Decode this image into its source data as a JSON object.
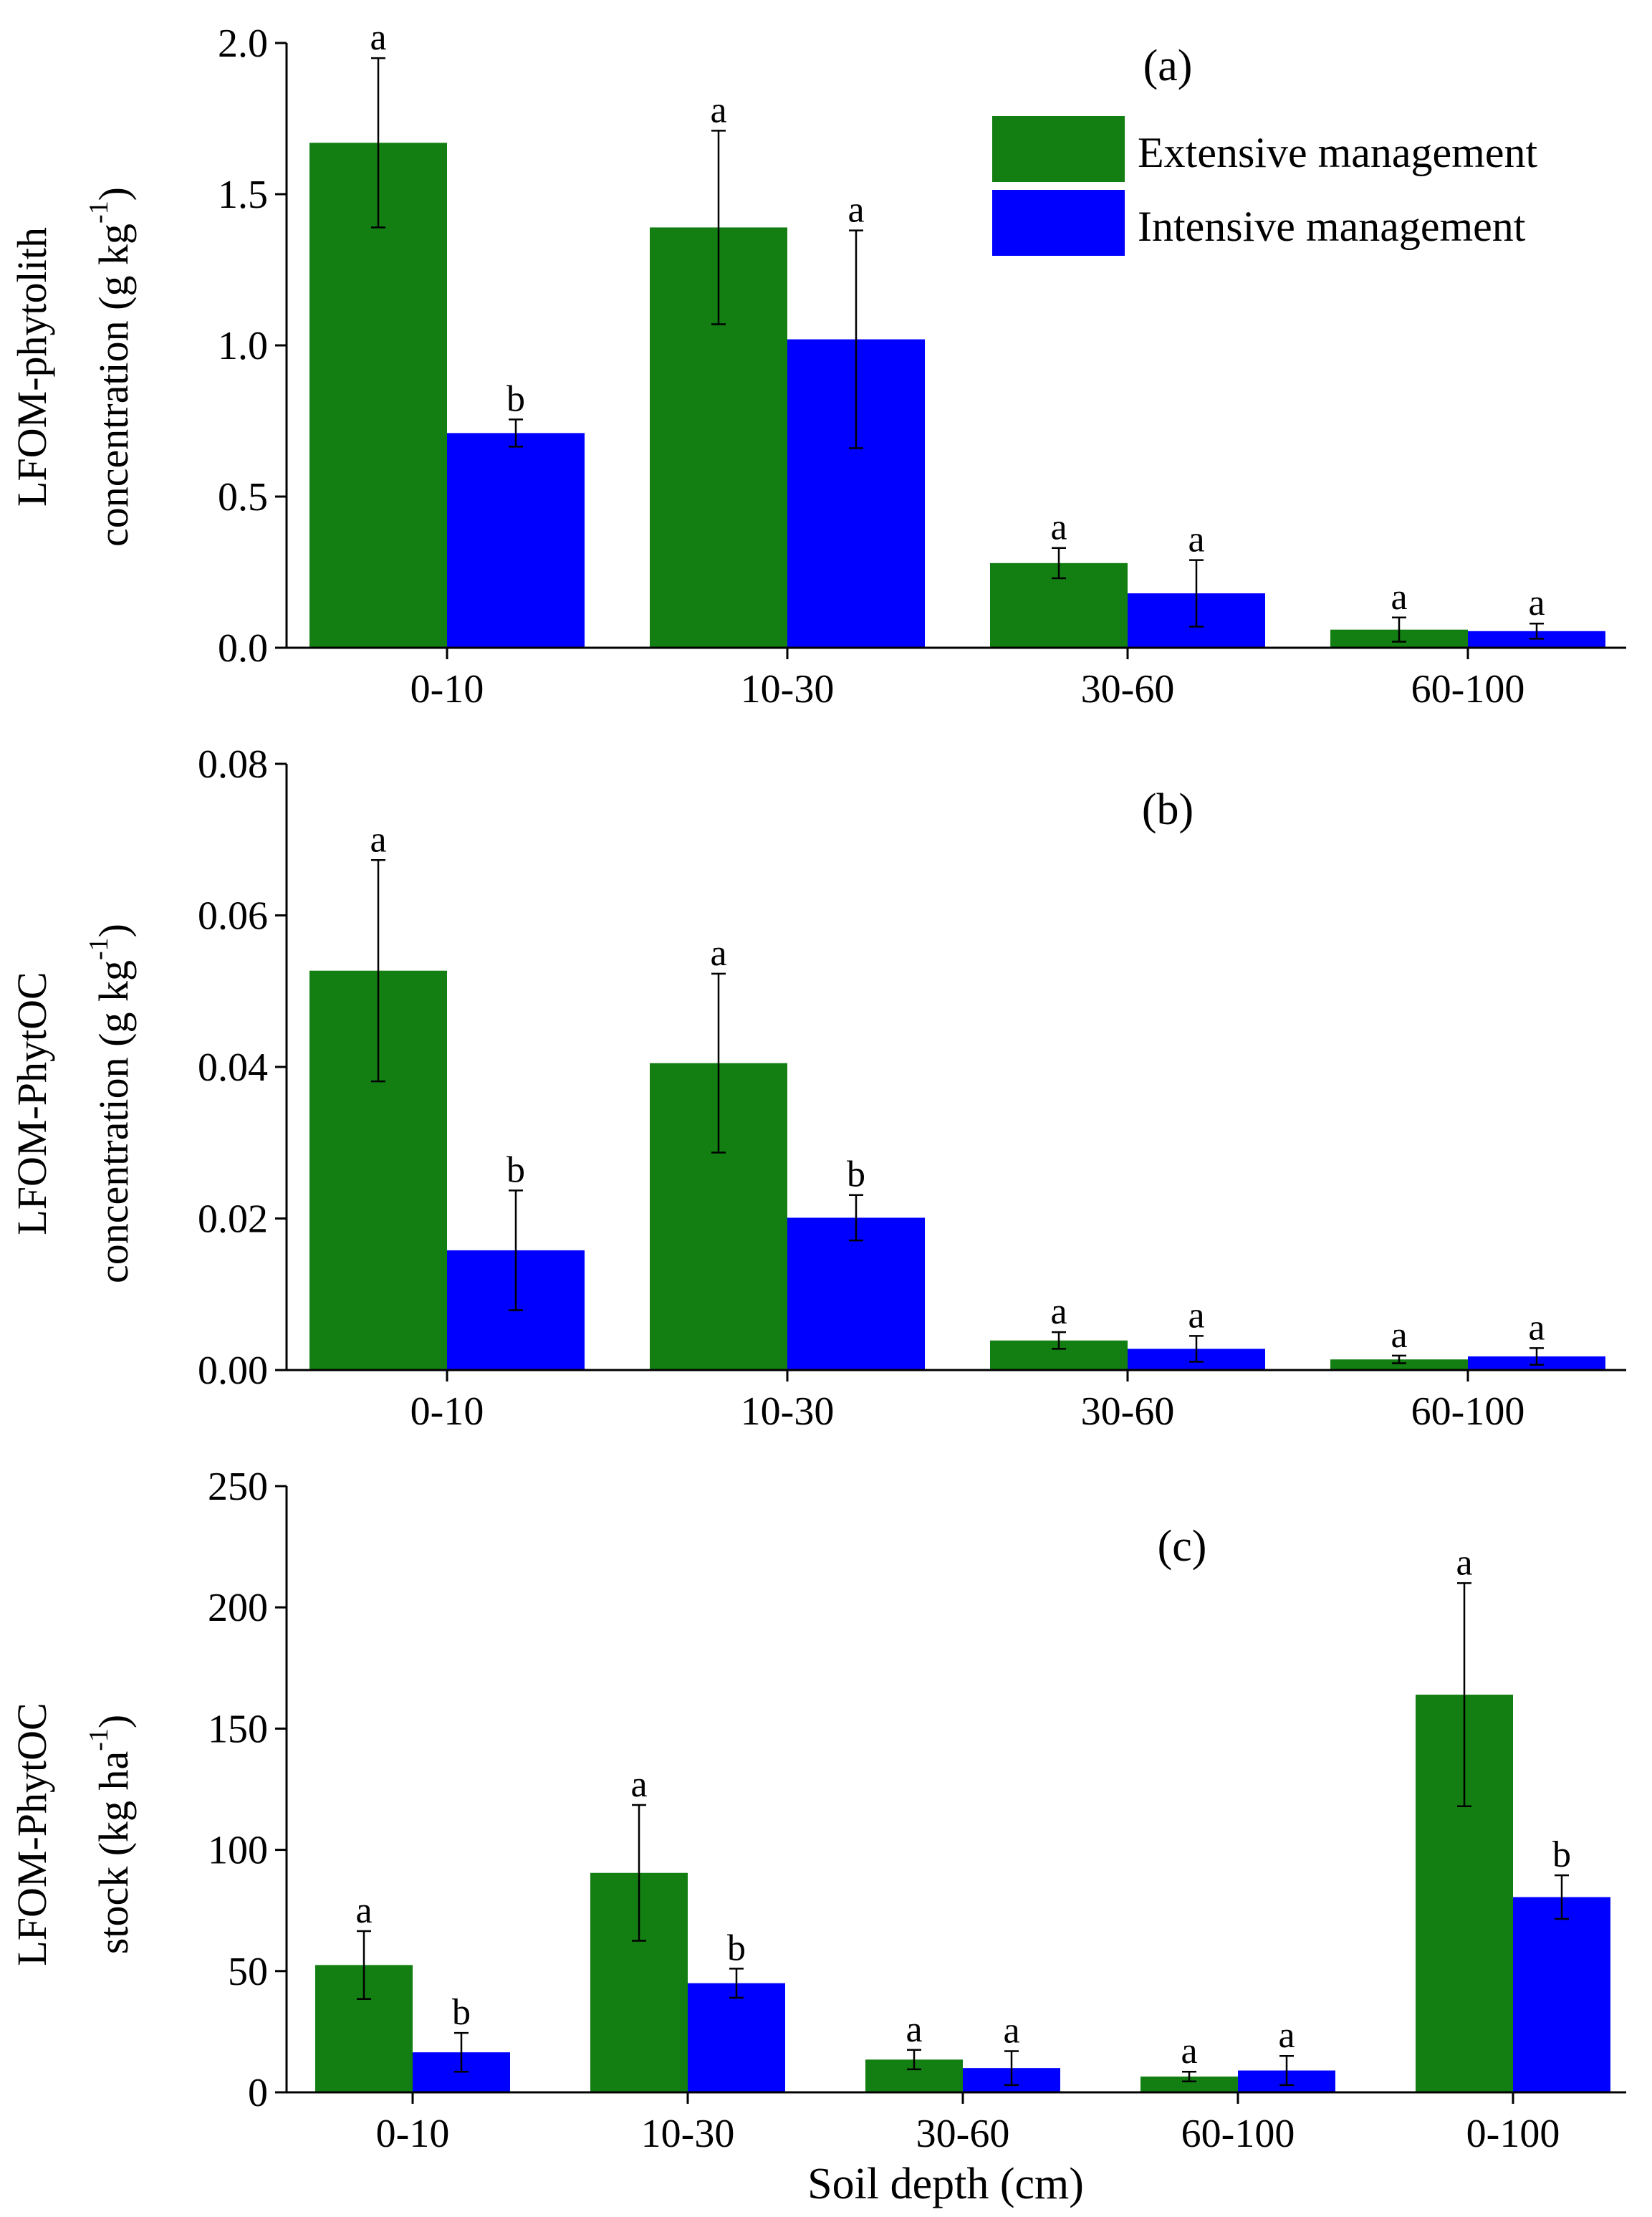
{
  "colors": {
    "extensive": "#137f13",
    "intensive": "#0000ff",
    "axis": "#000000"
  },
  "legend": {
    "extensive_label": "Extensive management",
    "intensive_label": "Intensive management"
  },
  "xlabel": "Soil depth (cm)",
  "chart_data": [
    {
      "type": "bar",
      "panel_label": "(a)",
      "ylabel_line1": "LFOM-phytolith",
      "ylabel_line2": "concentration (g kg",
      "ylabel_sup": "-1",
      "ylabel_close": ")",
      "ylim": [
        0,
        2.0
      ],
      "yticks": [
        "0.0",
        "0.5",
        "1.0",
        "1.5",
        "2.0"
      ],
      "categories": [
        "0-10",
        "10-30",
        "30-60",
        "60-100"
      ],
      "legend_position": "top-right",
      "series": [
        {
          "name": "Extensive management",
          "values": [
            1.67,
            1.39,
            0.28,
            0.06
          ],
          "errors": [
            0.28,
            0.32,
            0.05,
            0.04
          ],
          "letters": [
            "a",
            "a",
            "a",
            "a"
          ]
        },
        {
          "name": "Intensive management",
          "values": [
            0.71,
            1.02,
            0.18,
            0.055
          ],
          "errors": [
            0.045,
            0.36,
            0.11,
            0.025
          ],
          "letters": [
            "b",
            "a",
            "a",
            "a"
          ]
        }
      ]
    },
    {
      "type": "bar",
      "panel_label": "(b)",
      "ylabel_line1": "LFOM-PhytOC",
      "ylabel_line2": "concentration (g kg",
      "ylabel_sup": "-1",
      "ylabel_close": ")",
      "ylim": [
        0,
        0.08
      ],
      "yticks": [
        "0.00",
        "0.02",
        "0.04",
        "0.06",
        "0.08"
      ],
      "categories": [
        "0-10",
        "10-30",
        "30-60",
        "60-100"
      ],
      "series": [
        {
          "name": "Extensive management",
          "values": [
            0.0527,
            0.0405,
            0.0039,
            0.0014
          ],
          "errors": [
            0.0146,
            0.0118,
            0.0011,
            0.0005
          ],
          "letters": [
            "a",
            "a",
            "a",
            "a"
          ]
        },
        {
          "name": "Intensive management",
          "values": [
            0.0158,
            0.0201,
            0.0028,
            0.0018
          ],
          "errors": [
            0.0079,
            0.003,
            0.0017,
            0.0011
          ],
          "letters": [
            "b",
            "b",
            "a",
            "a"
          ]
        }
      ]
    },
    {
      "type": "bar",
      "panel_label": "(c)",
      "ylabel_line1": "LFOM-PhytOC",
      "ylabel_line2": "stock (kg ha",
      "ylabel_sup": "-1",
      "ylabel_close": ")",
      "ylim": [
        0,
        250
      ],
      "yticks": [
        "0",
        "50",
        "100",
        "150",
        "200",
        "250"
      ],
      "categories": [
        "0-10",
        "10-30",
        "30-60",
        "60-100",
        "0-100"
      ],
      "series": [
        {
          "name": "Extensive management",
          "values": [
            52.5,
            90.5,
            13.5,
            6.5,
            164
          ],
          "errors": [
            14,
            28,
            4,
            2,
            46
          ],
          "letters": [
            "a",
            "a",
            "a",
            "a",
            "a"
          ]
        },
        {
          "name": "Intensive management",
          "values": [
            16.5,
            45,
            10,
            9,
            80.5
          ],
          "errors": [
            8,
            6,
            7,
            6,
            9
          ],
          "letters": [
            "b",
            "b",
            "a",
            "a",
            "b"
          ]
        }
      ]
    }
  ]
}
